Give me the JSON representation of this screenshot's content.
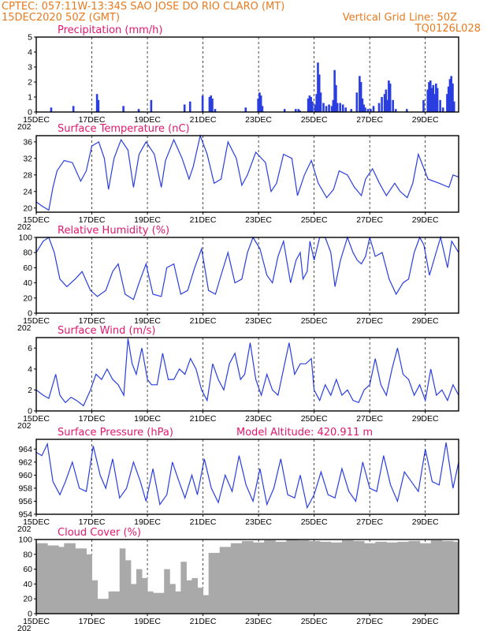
{
  "header": {
    "left_line1": "CPTEC:   057:11W-13:34S   SAO JOSE DO RIO CLARO (MT)",
    "left_line2": "15DEC2020 50Z (GMT)",
    "right_line2": "Vertical Grid Line: 50Z",
    "right_line3": "TQ0126L028",
    "color": "#e87a1e"
  },
  "x_axis": {
    "ticks": [
      "15DEC",
      "17DEC",
      "19DEC",
      "21DEC",
      "23DEC",
      "25DEC",
      "27DEC",
      "29DEC"
    ],
    "tick_days": [
      0,
      2,
      4,
      6,
      8,
      10,
      12,
      14
    ],
    "range_days": [
      0,
      15.2
    ],
    "partial_year_label": "202"
  },
  "chart_data": [
    {
      "type": "bar",
      "title": "Precipitation (mm/h)",
      "ylim": [
        0,
        5
      ],
      "yticks": [
        0,
        1,
        2,
        3,
        4,
        5
      ],
      "color": "#2a3ee0",
      "x": [
        0.5,
        1.3,
        2.15,
        2.2,
        3.1,
        3.65,
        4.1,
        5.3,
        5.5,
        5.95,
        6.2,
        6.25,
        6.3,
        6.4,
        7.5,
        7.95,
        8.0,
        8.05,
        8.1,
        8.9,
        9.3,
        9.4,
        9.45,
        9.75,
        9.8,
        9.85,
        9.9,
        10.0,
        10.05,
        10.1,
        10.15,
        10.2,
        10.3,
        10.4,
        10.5,
        10.6,
        10.65,
        10.7,
        10.75,
        10.8,
        10.9,
        11.0,
        11.1,
        11.3,
        11.5,
        11.6,
        11.65,
        11.7,
        11.75,
        11.8,
        11.9,
        12.0,
        12.1,
        12.3,
        12.4,
        12.5,
        12.55,
        12.6,
        12.65,
        12.7,
        12.8,
        12.9,
        13.3,
        13.9,
        14.05,
        14.1,
        14.15,
        14.2,
        14.25,
        14.3,
        14.35,
        14.4,
        14.5,
        14.6,
        14.75,
        14.8,
        14.85,
        14.9,
        14.95,
        15.0
      ],
      "values": [
        0.3,
        0.4,
        1.2,
        0.8,
        0.4,
        0.2,
        0.8,
        0.5,
        0.7,
        1.1,
        1.0,
        1.1,
        0.9,
        0.2,
        0.3,
        0.9,
        1.3,
        1.1,
        0.4,
        0.2,
        0.2,
        0.2,
        0.1,
        0.9,
        1.1,
        1.0,
        0.7,
        0.5,
        1.2,
        3.3,
        2.5,
        1.3,
        0.6,
        0.4,
        0.5,
        0.4,
        0.8,
        2.8,
        1.8,
        0.6,
        0.6,
        0.5,
        0.3,
        0.2,
        1.3,
        2.4,
        2.0,
        0.9,
        0.5,
        0.3,
        0.2,
        0.2,
        0.4,
        0.6,
        1.0,
        1.2,
        1.5,
        0.8,
        2.1,
        1.9,
        0.8,
        0.2,
        0.2,
        0.8,
        1.5,
        2.0,
        2.1,
        1.6,
        1.8,
        1.2,
        1.9,
        1.6,
        0.8,
        0.3,
        1.2,
        1.7,
        2.2,
        2.4,
        1.9,
        0.7
      ]
    },
    {
      "type": "line",
      "title": "Surface Temperature (nC)",
      "ylim": [
        19,
        37.5
      ],
      "yticks": [
        20,
        24,
        28,
        32,
        36
      ],
      "color": "#2a3ee0",
      "x": [
        0,
        0.2,
        0.45,
        0.6,
        0.75,
        1.0,
        1.3,
        1.6,
        1.8,
        2.0,
        2.25,
        2.45,
        2.6,
        2.8,
        3.05,
        3.3,
        3.5,
        3.7,
        3.95,
        4.25,
        4.5,
        4.65,
        4.95,
        5.25,
        5.5,
        5.65,
        5.9,
        6.15,
        6.4,
        6.65,
        6.9,
        7.2,
        7.4,
        7.6,
        7.9,
        8.25,
        8.45,
        8.65,
        8.9,
        9.2,
        9.4,
        9.65,
        9.9,
        10.15,
        10.45,
        10.7,
        10.9,
        11.2,
        11.45,
        11.7,
        11.85,
        12.1,
        12.35,
        12.6,
        12.9,
        13.1,
        13.35,
        13.55,
        13.75,
        14.1,
        14.5,
        14.85,
        15.0,
        15.2
      ],
      "values": [
        21.5,
        20.5,
        19.5,
        25,
        29,
        31.5,
        31,
        26.5,
        29,
        35,
        36,
        32,
        24.5,
        32,
        36.5,
        34,
        25,
        33,
        36,
        33,
        25,
        31.5,
        36.5,
        32,
        27,
        30,
        37.5,
        33,
        26,
        27,
        36,
        32,
        25.5,
        28,
        33.5,
        31,
        24,
        26,
        33,
        32,
        23,
        28,
        31.5,
        26,
        22.5,
        24.5,
        29,
        28,
        25,
        23,
        27,
        29.5,
        26,
        23,
        26,
        24,
        22.5,
        26,
        33,
        27,
        26,
        25,
        28,
        27.5
      ]
    },
    {
      "type": "line",
      "title": "Relative Humidity (%)",
      "ylim": [
        0,
        100
      ],
      "yticks": [
        0,
        20,
        40,
        60,
        80,
        100
      ],
      "color": "#2a3ee0",
      "x": [
        0,
        0.25,
        0.45,
        0.65,
        0.85,
        1.1,
        1.4,
        1.65,
        1.95,
        2.2,
        2.5,
        2.75,
        2.95,
        3.2,
        3.5,
        3.7,
        3.95,
        4.2,
        4.5,
        4.7,
        4.95,
        5.2,
        5.45,
        5.7,
        5.95,
        6.2,
        6.45,
        6.65,
        6.9,
        7.15,
        7.4,
        7.6,
        7.8,
        8.05,
        8.3,
        8.5,
        8.7,
        8.9,
        9.15,
        9.35,
        9.5,
        9.6,
        9.75,
        9.85,
        10.0,
        10.2,
        10.4,
        10.6,
        10.75,
        10.95,
        11.2,
        11.4,
        11.55,
        11.7,
        11.85,
        12.0,
        12.2,
        12.45,
        12.7,
        12.95,
        13.2,
        13.4,
        13.6,
        13.8,
        13.95,
        14.15,
        14.35,
        14.55,
        14.8,
        14.95,
        15.2
      ],
      "values": [
        80,
        95,
        100,
        80,
        45,
        35,
        45,
        55,
        30,
        22,
        30,
        55,
        65,
        25,
        18,
        40,
        65,
        25,
        22,
        60,
        65,
        25,
        30,
        60,
        85,
        30,
        25,
        50,
        80,
        40,
        45,
        80,
        100,
        85,
        50,
        40,
        75,
        95,
        40,
        70,
        80,
        45,
        55,
        95,
        70,
        100,
        100,
        80,
        35,
        70,
        100,
        80,
        70,
        65,
        75,
        100,
        75,
        80,
        45,
        25,
        40,
        45,
        80,
        100,
        90,
        50,
        75,
        100,
        60,
        95,
        80
      ]
    },
    {
      "type": "line",
      "title": "Surface Wind (m/s)",
      "ylim": [
        0,
        7
      ],
      "yticks": [
        0,
        2,
        4,
        6
      ],
      "color": "#2a3ee0",
      "x": [
        0,
        0.25,
        0.45,
        0.7,
        0.85,
        1.05,
        1.25,
        1.45,
        1.7,
        1.95,
        2.15,
        2.35,
        2.55,
        2.75,
        2.95,
        3.15,
        3.3,
        3.45,
        3.6,
        3.8,
        4.0,
        4.15,
        4.35,
        4.55,
        4.75,
        4.95,
        5.15,
        5.35,
        5.55,
        5.75,
        5.95,
        6.15,
        6.35,
        6.55,
        6.75,
        6.95,
        7.15,
        7.35,
        7.5,
        7.7,
        7.9,
        8.1,
        8.3,
        8.5,
        8.7,
        8.9,
        9.1,
        9.3,
        9.5,
        9.7,
        9.9,
        10.0,
        10.2,
        10.4,
        10.6,
        10.8,
        11.0,
        11.2,
        11.4,
        11.6,
        11.8,
        12.0,
        12.2,
        12.4,
        12.6,
        12.8,
        13.0,
        13.2,
        13.4,
        13.6,
        13.8,
        14.0,
        14.2,
        14.4,
        14.6,
        14.8,
        15.0,
        15.2
      ],
      "values": [
        2.0,
        1.5,
        1.2,
        3.5,
        1.5,
        0.8,
        1.3,
        1.0,
        0.5,
        2.0,
        3.5,
        3.0,
        4.0,
        3.0,
        2.5,
        1.5,
        6.9,
        4.5,
        3.5,
        6.0,
        3.0,
        2.5,
        2.5,
        5.5,
        3.0,
        3.0,
        4.0,
        3.5,
        5.0,
        4.0,
        2.0,
        1.0,
        4.5,
        3.0,
        2.0,
        4.5,
        5.5,
        3.0,
        3.5,
        6.5,
        3.0,
        1.5,
        3.5,
        2.0,
        1.5,
        4.0,
        6.5,
        3.5,
        4.5,
        4.5,
        5.0,
        2.0,
        1.0,
        2.5,
        1.5,
        3.0,
        1.5,
        2.0,
        1.0,
        0.8,
        2.0,
        2.5,
        5.0,
        2.5,
        1.5,
        4.0,
        6.0,
        3.5,
        3.0,
        1.5,
        2.5,
        1.0,
        4.0,
        1.5,
        2.0,
        1.0,
        2.5,
        1.5
      ]
    },
    {
      "type": "line",
      "title": "Surface Pressure (hPa)",
      "annotation": "Model Altitude: 420.911  m",
      "ylim": [
        954,
        965.5
      ],
      "yticks": [
        954,
        956,
        958,
        960,
        962,
        964
      ],
      "color": "#2a3ee0",
      "x": [
        0,
        0.2,
        0.4,
        0.6,
        0.85,
        1.05,
        1.3,
        1.55,
        1.8,
        2.05,
        2.3,
        2.5,
        2.75,
        3.0,
        3.25,
        3.5,
        3.75,
        3.95,
        4.2,
        4.45,
        4.7,
        4.9,
        5.1,
        5.35,
        5.6,
        5.8,
        6.05,
        6.3,
        6.55,
        6.8,
        7.05,
        7.3,
        7.55,
        7.8,
        8.05,
        8.3,
        8.55,
        8.8,
        9.05,
        9.3,
        9.5,
        9.75,
        10.0,
        10.25,
        10.5,
        10.75,
        11.0,
        11.25,
        11.5,
        11.75,
        12.0,
        12.25,
        12.5,
        12.75,
        13.0,
        13.25,
        13.5,
        13.75,
        14.0,
        14.25,
        14.5,
        14.75,
        15.0,
        15.2
      ],
      "values": [
        963.5,
        963,
        964.8,
        959,
        957,
        959,
        962,
        958,
        957.5,
        964.5,
        960,
        958,
        962.5,
        956.5,
        958,
        962,
        959,
        956,
        961,
        955.5,
        957,
        962,
        959.5,
        956.5,
        960,
        957,
        962.5,
        958,
        955.8,
        960,
        957.5,
        963,
        958.5,
        956,
        961,
        955.5,
        958,
        962.5,
        957,
        956.5,
        960,
        955,
        957,
        960.5,
        957,
        956.5,
        961,
        957.5,
        956,
        962,
        958,
        957.5,
        963,
        958.5,
        956,
        960.5,
        959,
        957.5,
        964,
        959,
        958.5,
        965,
        958,
        962
      ]
    },
    {
      "type": "bar",
      "title": "Cloud Cover (%)",
      "ylim": [
        0,
        100
      ],
      "yticks": [
        0,
        20,
        40,
        60,
        80,
        100
      ],
      "color": "#a9a9a9",
      "x": [
        0.0,
        0.4,
        0.8,
        1.0,
        1.4,
        1.8,
        2.0,
        2.2,
        2.6,
        3.0,
        3.2,
        3.4,
        3.6,
        3.8,
        4.0,
        4.2,
        4.6,
        4.8,
        5.0,
        5.2,
        5.4,
        5.6,
        5.8,
        6.0,
        6.2,
        6.6,
        7.0,
        7.4,
        7.8,
        8.2,
        8.6,
        9.0,
        9.4,
        9.8,
        10.2,
        10.6,
        11.0,
        11.4,
        11.8,
        12.2,
        12.6,
        13.0,
        13.4,
        13.8,
        14.2,
        14.6,
        15.0
      ],
      "values": [
        95,
        92,
        90,
        95,
        88,
        80,
        45,
        20,
        30,
        88,
        72,
        40,
        60,
        48,
        30,
        28,
        60,
        40,
        30,
        70,
        45,
        48,
        35,
        25,
        82,
        90,
        95,
        98,
        96,
        99,
        97,
        100,
        99,
        98,
        97,
        96,
        99,
        98,
        95,
        97,
        96,
        97,
        98,
        95,
        99,
        98,
        97
      ]
    }
  ]
}
